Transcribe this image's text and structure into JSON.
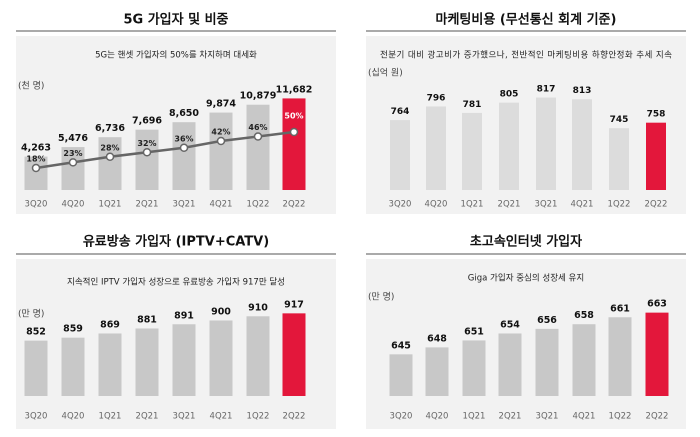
{
  "colors": {
    "bar": "#c8c8c8",
    "bar_light": "#dcdcdc",
    "highlight": "#e3173b",
    "line": "#666666",
    "panel": "#f2f2f2",
    "rule": "#555555"
  },
  "chart_data": [
    {
      "type": "bar",
      "title": "5G 가입자 및 비중",
      "subtitle": "5G는 핸셋 가입자의 50%를 차지하며 대세화",
      "unit": "(천 명)",
      "categories": [
        "3Q20",
        "4Q20",
        "1Q21",
        "2Q21",
        "3Q21",
        "4Q21",
        "1Q22",
        "2Q22"
      ],
      "values": [
        4263,
        5476,
        6736,
        7696,
        8650,
        9874,
        10879,
        11682
      ],
      "value_labels": [
        "4,263",
        "5,476",
        "6,736",
        "7,696",
        "8,650",
        "9,874",
        "10,879",
        "11,682"
      ],
      "ylim": [
        0,
        12500
      ],
      "line_series": {
        "type": "line",
        "values": [
          18,
          23,
          28,
          32,
          36,
          42,
          46,
          50
        ],
        "labels": [
          "18%",
          "23%",
          "28%",
          "32%",
          "36%",
          "42%",
          "46%",
          "50%"
        ],
        "ylim": [
          0,
          100
        ]
      },
      "highlight_index": 7
    },
    {
      "type": "bar",
      "title": "마케팅비용 (무선통신 회계 기준)",
      "subtitle": "전분기 대비 광고비가 증가했으나, 전반적인 마케팅비용 하향안정화 추세 지속",
      "unit": "(십억 원)",
      "categories": [
        "3Q20",
        "4Q20",
        "1Q21",
        "2Q21",
        "3Q21",
        "4Q21",
        "1Q22",
        "2Q22"
      ],
      "values": [
        764,
        796,
        781,
        805,
        817,
        813,
        745,
        758
      ],
      "value_labels": [
        "764",
        "796",
        "781",
        "805",
        "817",
        "813",
        "745",
        "758"
      ],
      "ylim": [
        600,
        830
      ],
      "highlight_index": 7
    },
    {
      "type": "bar",
      "title": "유료방송 가입자 (IPTV+CATV)",
      "subtitle": "지속적인 IPTV 가입자 성장으로 유료방송 가입자 917만 달성",
      "unit": "(만 명)",
      "categories": [
        "3Q20",
        "4Q20",
        "1Q21",
        "2Q21",
        "3Q21",
        "4Q21",
        "1Q22",
        "2Q22"
      ],
      "values": [
        852,
        859,
        869,
        881,
        891,
        900,
        910,
        917
      ],
      "value_labels": [
        "852",
        "859",
        "869",
        "881",
        "891",
        "900",
        "910",
        "917"
      ],
      "ylim": [
        720,
        925
      ],
      "highlight_index": 7
    },
    {
      "type": "bar",
      "title": "초고속인터넷 가입자",
      "subtitle": "Giga 가입자 중심의 성장세 유지",
      "unit": "(만 명)",
      "categories": [
        "3Q20",
        "4Q20",
        "1Q21",
        "2Q21",
        "3Q21",
        "4Q21",
        "1Q22",
        "2Q22"
      ],
      "values": [
        645,
        648,
        651,
        654,
        656,
        658,
        661,
        663
      ],
      "value_labels": [
        "645",
        "648",
        "651",
        "654",
        "656",
        "658",
        "661",
        "663"
      ],
      "ylim": [
        627,
        665
      ],
      "highlight_index": 7
    }
  ]
}
